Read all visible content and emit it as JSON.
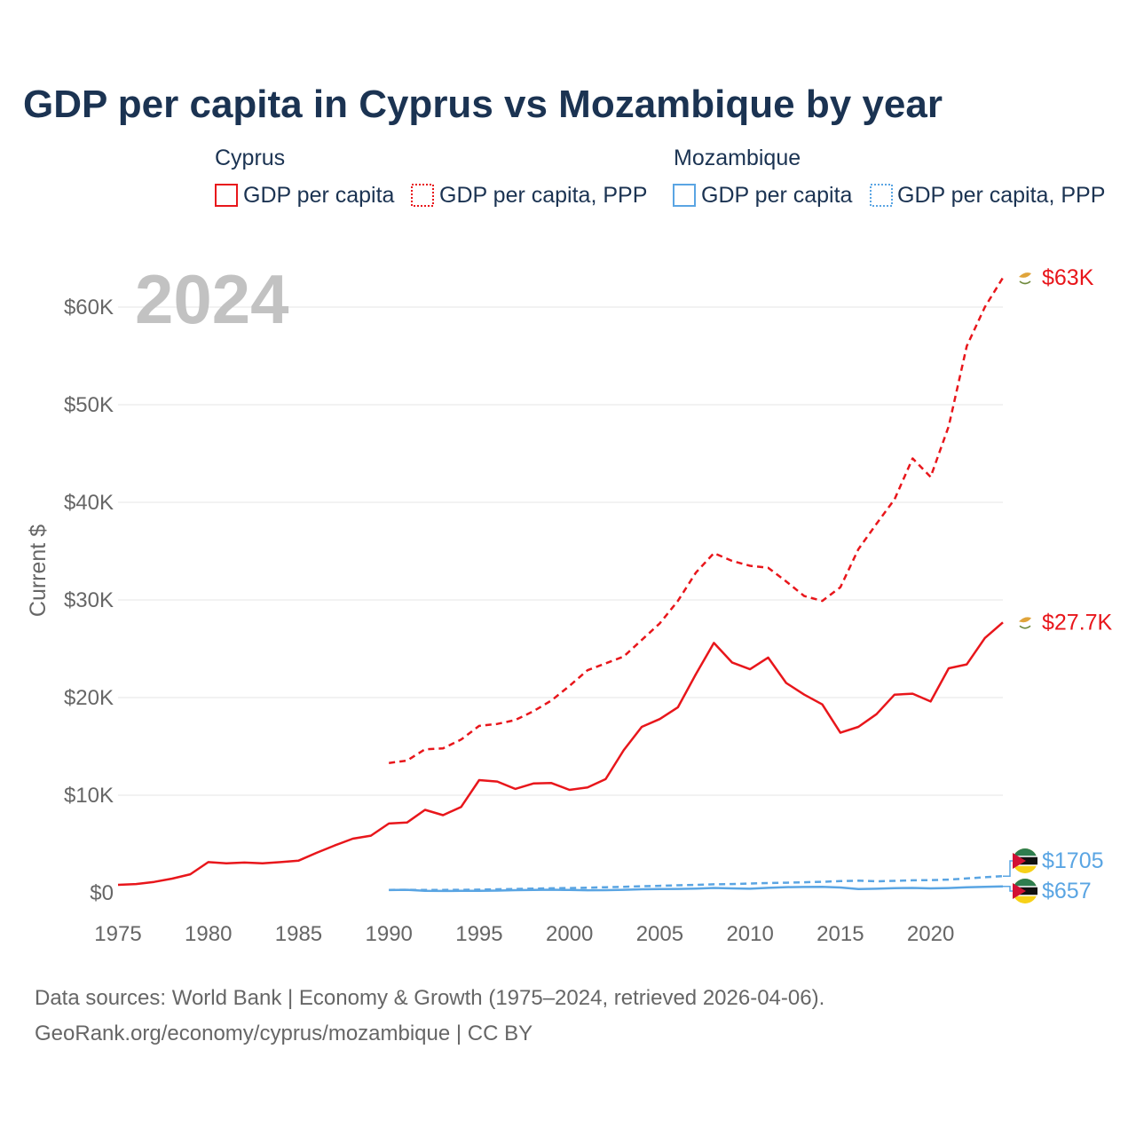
{
  "chart_data": {
    "type": "line",
    "title": "GDP per capita in Cyprus vs Mozambique by year",
    "ylabel": "Current $",
    "xlim": [
      1975,
      2024
    ],
    "ylim": [
      0,
      63000
    ],
    "year_label": "2024",
    "x_ticks": [
      1975,
      1980,
      1985,
      1990,
      1995,
      2000,
      2005,
      2010,
      2015,
      2020
    ],
    "y_ticks": [
      {
        "value": 0,
        "label": "$0"
      },
      {
        "value": 10000,
        "label": "$10K"
      },
      {
        "value": 20000,
        "label": "$20K"
      },
      {
        "value": 30000,
        "label": "$30K"
      },
      {
        "value": 40000,
        "label": "$40K"
      },
      {
        "value": 50000,
        "label": "$50K"
      },
      {
        "value": 60000,
        "label": "$60K"
      }
    ],
    "legend": [
      {
        "group": "Cyprus",
        "items": [
          "GDP per capita",
          "GDP per capita, PPP"
        ]
      },
      {
        "group": "Mozambique",
        "items": [
          "GDP per capita",
          "GDP per capita, PPP"
        ]
      }
    ],
    "series": [
      {
        "name": "Cyprus GDP per capita",
        "color": "#e8161b",
        "dash": "solid",
        "end_label": "$27.7K",
        "end_icon": "cyprus-flag-icon",
        "x": [
          1975,
          1976,
          1977,
          1978,
          1979,
          1980,
          1981,
          1982,
          1983,
          1984,
          1985,
          1986,
          1987,
          1988,
          1989,
          1990,
          1991,
          1992,
          1993,
          1994,
          1995,
          1996,
          1997,
          1998,
          1999,
          2000,
          2001,
          2002,
          2003,
          2004,
          2005,
          2006,
          2007,
          2008,
          2009,
          2010,
          2011,
          2012,
          2013,
          2014,
          2015,
          2016,
          2017,
          2018,
          2019,
          2020,
          2021,
          2022,
          2023,
          2024
        ],
        "values": [
          820,
          900,
          1120,
          1450,
          1900,
          3150,
          3020,
          3100,
          3030,
          3150,
          3300,
          4100,
          4850,
          5550,
          5850,
          7100,
          7200,
          8500,
          7950,
          8800,
          11550,
          11400,
          10650,
          11200,
          11250,
          10550,
          10800,
          11650,
          14600,
          17000,
          17800,
          19000,
          22400,
          25600,
          23600,
          22900,
          24100,
          21500,
          20300,
          19300,
          16400,
          17000,
          18300,
          20300,
          20400,
          19600,
          23000,
          23400,
          26100,
          27700
        ]
      },
      {
        "name": "Cyprus GDP per capita, PPP",
        "color": "#e8161b",
        "dash": "dashed",
        "end_label": "$63K",
        "end_icon": "cyprus-flag-icon",
        "x": [
          1990,
          1991,
          1992,
          1993,
          1994,
          1995,
          1996,
          1997,
          1998,
          1999,
          2000,
          2001,
          2002,
          2003,
          2004,
          2005,
          2006,
          2007,
          2008,
          2009,
          2010,
          2011,
          2012,
          2013,
          2014,
          2015,
          2016,
          2017,
          2018,
          2019,
          2020,
          2021,
          2022,
          2023,
          2024
        ],
        "values": [
          13300,
          13550,
          14700,
          14800,
          15700,
          17100,
          17300,
          17700,
          18600,
          19700,
          21200,
          22800,
          23500,
          24200,
          25900,
          27600,
          29900,
          32800,
          34800,
          34000,
          33500,
          33300,
          31900,
          30400,
          29900,
          31300,
          35200,
          37800,
          40300,
          44500,
          42600,
          47800,
          56000,
          60000,
          63000
        ]
      },
      {
        "name": "Mozambique GDP per capita",
        "color": "#5aa5e3",
        "dash": "solid",
        "end_label": "$657",
        "end_icon": "mozambique-flag-icon",
        "x": [
          1990,
          1991,
          1992,
          1993,
          1994,
          1995,
          1996,
          1997,
          1998,
          1999,
          2000,
          2001,
          2002,
          2003,
          2004,
          2005,
          2006,
          2007,
          2008,
          2009,
          2010,
          2011,
          2012,
          2013,
          2014,
          2015,
          2016,
          2017,
          2018,
          2019,
          2020,
          2021,
          2022,
          2023,
          2024
        ],
        "values": [
          280,
          310,
          200,
          190,
          200,
          200,
          230,
          270,
          300,
          320,
          290,
          260,
          270,
          310,
          360,
          390,
          400,
          440,
          500,
          450,
          420,
          510,
          580,
          600,
          620,
          550,
          380,
          420,
          480,
          500,
          450,
          490,
          560,
          620,
          657
        ]
      },
      {
        "name": "Mozambique GDP per capita, PPP",
        "color": "#5aa5e3",
        "dash": "dashed",
        "end_label": "$1705",
        "end_icon": "mozambique-flag-icon",
        "x": [
          1990,
          1991,
          1992,
          1993,
          1994,
          1995,
          1996,
          1997,
          1998,
          1999,
          2000,
          2001,
          2002,
          2003,
          2004,
          2005,
          2006,
          2007,
          2008,
          2009,
          2010,
          2011,
          2012,
          2013,
          2014,
          2015,
          2016,
          2017,
          2018,
          2019,
          2020,
          2021,
          2022,
          2023,
          2024
        ],
        "values": [
          300,
          310,
          290,
          300,
          310,
          330,
          360,
          390,
          430,
          460,
          490,
          530,
          570,
          620,
          670,
          720,
          770,
          820,
          870,
          900,
          950,
          1000,
          1040,
          1080,
          1130,
          1200,
          1250,
          1180,
          1230,
          1280,
          1300,
          1350,
          1470,
          1600,
          1705
        ]
      }
    ],
    "source_line1": "Data sources: World Bank | Economy & Growth (1975–2024, retrieved 2026-04-06).",
    "source_line2": "GeoRank.org/economy/cyprus/mozambique | CC BY"
  }
}
